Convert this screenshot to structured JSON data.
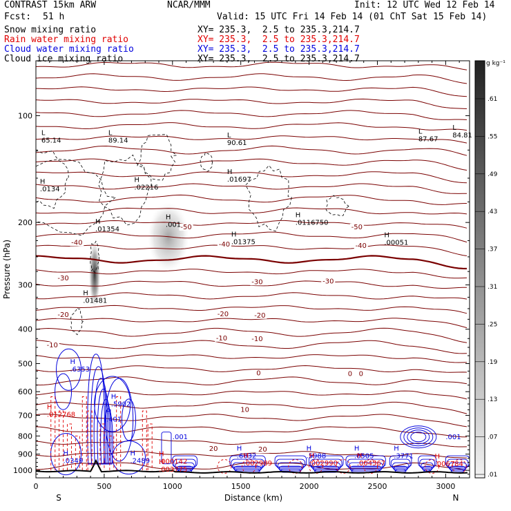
{
  "header": {
    "model": "CONTRAST 15km ARW",
    "org": "NCAR/MMM",
    "init": "Init: 12 UTC Wed 12 Feb 14",
    "fcst_label": "Fcst:",
    "fcst_value": "51 h",
    "valid": "Valid: 15 UTC Fri 14 Feb 14 (01 ChT Sat 15 Feb 14)"
  },
  "fields": [
    {
      "name": "Snow mixing ratio",
      "xy": "XY= 235.3,  2.5 to 235.3,214.7",
      "color": "#000000"
    },
    {
      "name": "Rain water mixing ratio",
      "xy": "XY= 235.3,  2.5 to 235.3,214.7",
      "color": "#e00000"
    },
    {
      "name": "Cloud water mixing ratio",
      "xy": "XY= 235.3,  2.5 to 235.3,214.7",
      "color": "#0000dd"
    },
    {
      "name": "Cloud ice mixing ratio",
      "xy": "XY= 235.3,  2.5 to 235.3,214.7",
      "color": "#000000"
    }
  ],
  "chart_data": {
    "type": "heatmap",
    "xlabel": "Distance (km)",
    "ylabel": "Pressure (hPa)",
    "xlim": [
      0,
      3175
    ],
    "ylim": [
      1050,
      70
    ],
    "y_scale": "log",
    "x_ticks": [
      "0",
      "500",
      "1000",
      "1500",
      "2000",
      "2500",
      "3000"
    ],
    "x_tick_values": [
      0,
      500,
      1000,
      1500,
      2000,
      2500,
      3000
    ],
    "y_ticks": [
      "100",
      "200",
      "300",
      "400",
      "500",
      "600",
      "700",
      "800",
      "900",
      "1000"
    ],
    "y_tick_values": [
      100,
      200,
      300,
      400,
      500,
      600,
      700,
      800,
      900,
      1000
    ],
    "x_endpoint_labels": [
      "S",
      "N"
    ],
    "colorbar": {
      "units": "g kg⁻¹",
      "labels": [
        ".61",
        ".55",
        ".49",
        ".43",
        ".37",
        ".31",
        ".25",
        ".19",
        ".13",
        ".07",
        ".01"
      ],
      "values": [
        0.61,
        0.55,
        0.49,
        0.43,
        0.37,
        0.31,
        0.25,
        0.19,
        0.13,
        0.07,
        0.01
      ]
    },
    "temperature_contours": [
      {
        "label": "-50",
        "x": 1100,
        "p": 208
      },
      {
        "label": "-50",
        "x": 2350,
        "p": 208
      },
      {
        "label": "-40",
        "x": 300,
        "p": 230
      },
      {
        "label": "-40",
        "x": 1380,
        "p": 233
      },
      {
        "label": "-40",
        "x": 2380,
        "p": 235
      },
      {
        "label": "-30",
        "x": 200,
        "p": 290
      },
      {
        "label": "-30",
        "x": 1620,
        "p": 297
      },
      {
        "label": "-30",
        "x": 2140,
        "p": 296
      },
      {
        "label": "-20",
        "x": 200,
        "p": 368
      },
      {
        "label": "-20",
        "x": 1370,
        "p": 366
      },
      {
        "label": "-20",
        "x": 1640,
        "p": 369
      },
      {
        "label": "-10",
        "x": 120,
        "p": 448
      },
      {
        "label": "-10",
        "x": 1360,
        "p": 428
      },
      {
        "label": "-10",
        "x": 1620,
        "p": 430
      },
      {
        "label": "0",
        "x": 1630,
        "p": 537
      },
      {
        "label": "0",
        "x": 2300,
        "p": 540
      },
      {
        "label": "0",
        "x": 2380,
        "p": 540
      },
      {
        "label": "10",
        "x": 1530,
        "p": 681
      },
      {
        "label": "20",
        "x": 1300,
        "p": 877
      },
      {
        "label": "20",
        "x": 1660,
        "p": 882
      }
    ],
    "temperature_interval": 5,
    "snow_extrema": [
      {
        "x": 40,
        "p": 118,
        "label": "65.14",
        "marker": "L"
      },
      {
        "x": 530,
        "p": 118,
        "label": "89.14",
        "marker": "L"
      },
      {
        "x": 1400,
        "p": 120,
        "label": "90.61",
        "marker": "L"
      },
      {
        "x": 2800,
        "p": 117,
        "label": "87.67",
        "marker": "L"
      },
      {
        "x": 3050,
        "p": 114,
        "label": "84.81",
        "marker": "L"
      },
      {
        "x": 30,
        "p": 162,
        "label": ".0134",
        "marker": "H"
      },
      {
        "x": 720,
        "p": 160,
        "label": ".02216",
        "marker": "H"
      },
      {
        "x": 1400,
        "p": 152,
        "label": ".01697",
        "marker": "H"
      },
      {
        "x": 1900,
        "p": 201,
        "label": ".0116750",
        "marker": "H"
      },
      {
        "x": 435,
        "p": 210,
        "label": ".01354",
        "marker": "H"
      },
      {
        "x": 950,
        "p": 204,
        "label": ".001",
        "marker": "H"
      },
      {
        "x": 1430,
        "p": 228,
        "label": ".01375",
        "marker": "H"
      },
      {
        "x": 2550,
        "p": 229,
        "label": ".00051",
        "marker": "H"
      },
      {
        "x": 345,
        "p": 334,
        "label": ".01481",
        "marker": "H"
      }
    ],
    "ice_shading_max": [
      {
        "x": 430,
        "p": 280,
        "value": 0.55
      },
      {
        "x": 970,
        "p": 220,
        "value": 0.25
      }
    ],
    "cloud_water_extrema": [
      {
        "x": 250,
        "p": 522,
        "label": ".6353",
        "marker": "H"
      },
      {
        "x": 550,
        "p": 655,
        "label": ".5902",
        "marker": "H"
      },
      {
        "x": 515,
        "p": 722,
        "label": ".401",
        "marker": "H"
      },
      {
        "x": 200,
        "p": 945,
        "label": ".0349",
        "marker": "H"
      },
      {
        "x": 690,
        "p": 945,
        "label": ".2489",
        "marker": "H"
      },
      {
        "x": 1470,
        "p": 915,
        "label": ".6032",
        "marker": "H"
      },
      {
        "x": 1980,
        "p": 915,
        "label": ".5988",
        "marker": "H"
      },
      {
        "x": 2330,
        "p": 915,
        "label": ".6505",
        "marker": "H"
      },
      {
        "x": 2620,
        "p": 915,
        "label": ".3771",
        "marker": "H"
      },
      {
        "x": 3000,
        "p": 810,
        "label": ".001",
        "marker": ""
      },
      {
        "x": 1000,
        "p": 810,
        "label": ".001",
        "marker": ""
      }
    ],
    "rain_extrema": [
      {
        "x": 80,
        "p": 700,
        "label": ".012768",
        "marker": "H"
      },
      {
        "x": 900,
        "p": 950,
        "label": ".000142",
        "marker": "H"
      },
      {
        "x": 900,
        "p": 1000,
        "label": ".003775",
        "marker": "H"
      },
      {
        "x": 1520,
        "p": 960,
        "label": ".002989",
        "marker": "H"
      },
      {
        "x": 2000,
        "p": 960,
        "label": ".002990",
        "marker": "H"
      },
      {
        "x": 2350,
        "p": 960,
        "label": ".004567",
        "marker": "H"
      },
      {
        "x": 2920,
        "p": 965,
        "label": ".006784",
        "marker": "H"
      }
    ]
  }
}
